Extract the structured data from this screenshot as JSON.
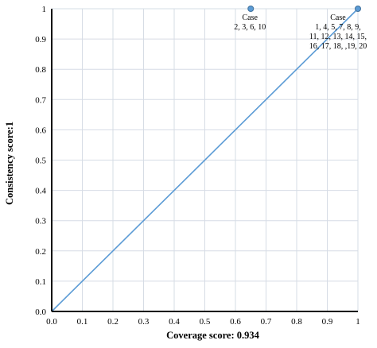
{
  "chart_data": {
    "type": "scatter",
    "xlabel": "Coverage score: 0.934",
    "ylabel": "Consistency score:1",
    "xlim": [
      0,
      1
    ],
    "ylim": [
      0,
      1
    ],
    "grid": true,
    "x_ticks": [
      "0.0",
      "0.1",
      "0.2",
      "0.3",
      "0.4",
      "0.5",
      "0.6",
      "0.7",
      "0.8",
      "0.9",
      "1"
    ],
    "y_ticks": [
      "0.0",
      "0.1",
      "0.2",
      "0.3",
      "0.4",
      "0.5",
      "0.6",
      "0.7",
      "0.8",
      "0.9",
      "1"
    ],
    "reference_line": {
      "from": [
        0,
        0
      ],
      "to": [
        1,
        1
      ]
    },
    "points": [
      {
        "x": 0.65,
        "y": 1,
        "label_lines": [
          "Case",
          "2, 3, 6, 10"
        ]
      },
      {
        "x": 1,
        "y": 1,
        "label_lines": [
          "Case",
          "1, 4, 5, 7, 8, 9,",
          "11, 12, 13, 14, 15,",
          "16, 17, 18, ,19, 20"
        ]
      }
    ],
    "colors": {
      "line": "#5B9BD5",
      "point": "#5B9BD5",
      "point_stroke": "#41719C",
      "grid": "#D6DCE5",
      "axis": "#000000"
    }
  }
}
